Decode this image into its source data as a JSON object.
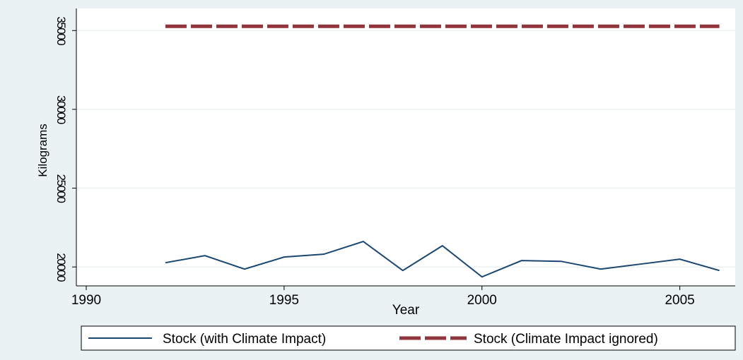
{
  "chart_data": {
    "type": "line",
    "x": [
      1992,
      1993,
      1994,
      1995,
      1996,
      1997,
      1998,
      1999,
      2000,
      2001,
      2002,
      2003,
      2004,
      2005,
      2006
    ],
    "series": [
      {
        "name": "Stock (with Climate Impact)",
        "color": "#1a476f",
        "line_style": "solid",
        "values": [
          20270,
          20719,
          19865,
          20629,
          20809,
          21617,
          19775,
          21348,
          19371,
          20404,
          20359,
          19865,
          20180,
          20494,
          19775
        ]
      },
      {
        "name": "Stock (Climate Impact ignored)",
        "color": "#90353b",
        "line_style": "dashed",
        "values": [
          35270,
          35270,
          35270,
          35270,
          35270,
          35270,
          35270,
          35270,
          35270,
          35270,
          35270,
          35270,
          35270,
          35270,
          35270
        ]
      }
    ],
    "x_label": "Year",
    "y_label": "Kilograms",
    "xlim": [
      1989.75,
      2006.4
    ],
    "xticks": [
      1990,
      1995,
      2000,
      2005
    ],
    "ylim": [
      18800,
      36400
    ],
    "yticks": [
      20000,
      25000,
      30000,
      35000
    ],
    "grid": true,
    "legend_position": "bottom"
  }
}
